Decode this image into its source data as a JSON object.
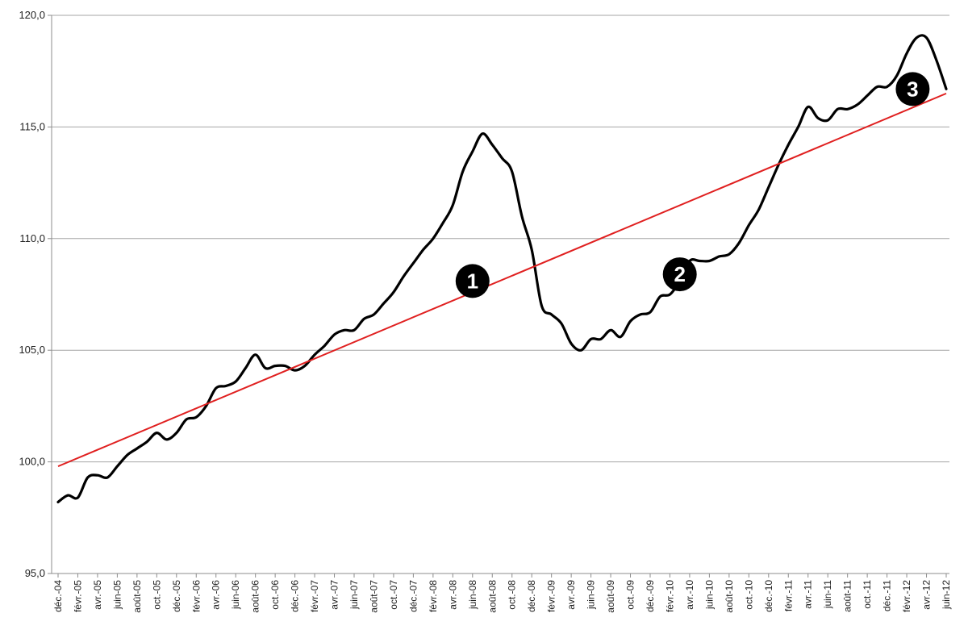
{
  "chart_data": {
    "type": "line",
    "title": "",
    "xlabel": "",
    "ylabel": "",
    "ylim": [
      95,
      120
    ],
    "yticks": [
      95,
      100,
      105,
      110,
      115,
      120
    ],
    "ytick_labels": [
      "95,0",
      "100,0",
      "105,0",
      "110,0",
      "115,0",
      "120,0"
    ],
    "grid": true,
    "legend": "none",
    "x_labels": [
      "déc.-04",
      "févr.-05",
      "avr.-05",
      "juin-05",
      "août-05",
      "oct.-05",
      "déc.-05",
      "févr.-06",
      "avr.-06",
      "juin-06",
      "août-06",
      "oct.-06",
      "déc.-06",
      "févr.-07",
      "avr.-07",
      "juin-07",
      "août-07",
      "oct.-07",
      "déc.-07",
      "févr.-08",
      "avr.-08",
      "juin-08",
      "août-08",
      "oct.-08",
      "déc.-08",
      "févr.-09",
      "avr.-09",
      "juin-09",
      "août-09",
      "oct.-09",
      "déc.-09",
      "févr.-10",
      "avr.-10",
      "juin-10",
      "août-10",
      "oct.-10",
      "déc.-10",
      "févr.-11",
      "avr.-11",
      "juin-11",
      "août-11",
      "oct.-11",
      "déc.-11",
      "févr.-12",
      "avr.-12",
      "juin-12"
    ],
    "series": [
      {
        "color": "#000000",
        "style": "solid",
        "values": [
          98.2,
          98.5,
          98.4,
          99.3,
          99.4,
          99.3,
          99.8,
          100.3,
          100.6,
          100.9,
          101.3,
          101.0,
          101.3,
          101.9,
          102.0,
          102.5,
          103.3,
          103.4,
          103.6,
          104.2,
          104.8,
          104.2,
          104.3,
          104.3,
          104.1,
          104.3,
          104.8,
          105.2,
          105.7,
          105.9,
          105.9,
          106.4,
          106.6,
          107.1,
          107.6,
          108.3,
          108.9,
          109.5,
          110.0,
          110.7,
          111.5,
          113.0,
          113.9,
          114.7,
          114.2,
          113.6,
          113.0,
          111.0,
          109.5,
          107.0,
          106.6,
          106.2,
          105.3,
          105.0,
          105.5,
          105.5,
          105.9,
          105.6,
          106.3,
          106.6,
          106.7,
          107.4,
          107.5,
          108.1,
          109.0,
          109.0,
          109.0,
          109.2,
          109.3,
          109.8,
          110.6,
          111.3,
          112.3,
          113.3,
          114.2,
          115.0,
          115.9,
          115.4,
          115.3,
          115.8,
          115.8,
          116.0,
          116.4,
          116.8,
          116.8,
          117.3,
          118.3,
          119.0,
          119.0,
          118.0,
          116.7
        ]
      },
      {
        "color": "#e02020",
        "style": "trend",
        "values": [
          99.8,
          116.5
        ]
      }
    ],
    "annotations": [
      "1",
      "2",
      "3"
    ],
    "annotation_positions": [
      {
        "label": "1",
        "x_index": 42,
        "y": 108.1
      },
      {
        "label": "2",
        "x_index": 63,
        "y": 108.4
      },
      {
        "label": "3",
        "x_index": 86.6,
        "y": 116.7
      }
    ]
  }
}
